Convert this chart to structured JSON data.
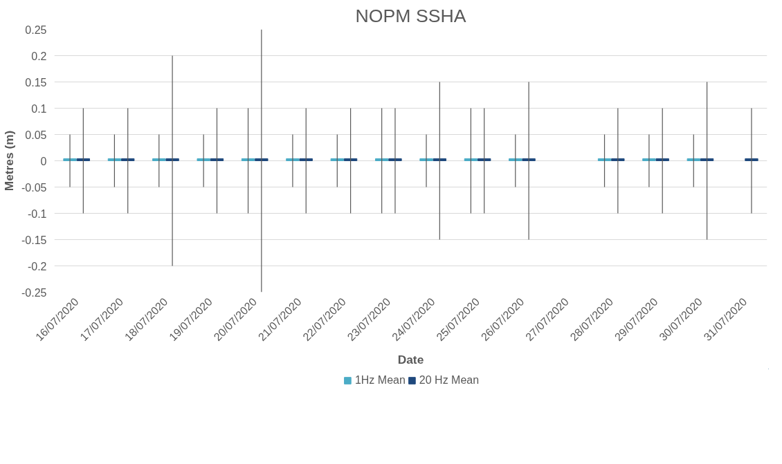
{
  "chart_data": {
    "type": "bar",
    "title": "NOPM SSHA",
    "xlabel": "Date",
    "ylabel": "Metres (m)",
    "categories": [
      "16/07/2020",
      "17/07/2020",
      "18/07/2020",
      "19/07/2020",
      "20/07/2020",
      "21/07/2020",
      "22/07/2020",
      "23/07/2020",
      "24/07/2020",
      "25/07/2020",
      "26/07/2020",
      "27/07/2020",
      "28/07/2020",
      "29/07/2020",
      "30/07/2020",
      "31/07/2020"
    ],
    "series": [
      {
        "name": "1Hz Mean",
        "color": "#4bacc6",
        "values": [
          0.004,
          0.004,
          0.004,
          0.004,
          0.004,
          0.004,
          0.004,
          0.004,
          0.004,
          0.004,
          0.004,
          null,
          0.004,
          0.004,
          0.004,
          null
        ],
        "errors": [
          [
            -0.05,
            0.05
          ],
          [
            -0.05,
            0.05
          ],
          [
            -0.05,
            0.05
          ],
          [
            -0.05,
            0.05
          ],
          [
            -0.1,
            0.1
          ],
          [
            -0.05,
            0.05
          ],
          [
            -0.05,
            0.05
          ],
          [
            -0.1,
            0.1
          ],
          [
            -0.05,
            0.05
          ],
          [
            -0.1,
            0.1
          ],
          [
            -0.05,
            0.05
          ],
          null,
          [
            -0.05,
            0.05
          ],
          [
            -0.05,
            0.05
          ],
          [
            -0.05,
            0.05
          ],
          null
        ]
      },
      {
        "name": "20 Hz Mean",
        "color": "#1f497d",
        "values": [
          0.004,
          0.004,
          0.004,
          0.004,
          0.004,
          0.004,
          0.004,
          0.004,
          0.004,
          0.004,
          0.004,
          null,
          0.004,
          0.004,
          0.004,
          0.004
        ],
        "errors": [
          [
            -0.1,
            0.1
          ],
          [
            -0.1,
            0.1
          ],
          [
            -0.2,
            0.2
          ],
          [
            -0.1,
            0.1
          ],
          [
            -0.25,
            0.25
          ],
          [
            -0.1,
            0.1
          ],
          [
            -0.1,
            0.1
          ],
          [
            -0.1,
            0.1
          ],
          [
            -0.15,
            0.15
          ],
          [
            -0.1,
            0.1
          ],
          [
            -0.15,
            0.15
          ],
          null,
          [
            -0.1,
            0.1
          ],
          [
            -0.1,
            0.1
          ],
          [
            -0.15,
            0.15
          ],
          [
            -0.1,
            0.1
          ]
        ]
      }
    ],
    "ylim": [
      -0.25,
      0.25
    ],
    "yticks": [
      -0.25,
      -0.2,
      -0.15,
      -0.1,
      -0.05,
      0,
      0.05,
      0.1,
      0.15,
      0.2,
      0.25
    ],
    "grid": "y",
    "legend": "bottom"
  }
}
